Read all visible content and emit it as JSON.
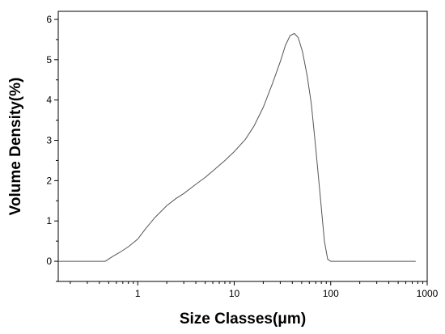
{
  "chart_data": {
    "type": "line",
    "title": "",
    "xlabel": "Size Classes(μm)",
    "ylabel": "Volume Density(%)",
    "x_scale": "log",
    "xlim": [
      0.15,
      1000
    ],
    "ylim": [
      -0.5,
      6.2
    ],
    "x_ticks": [
      {
        "value": 1,
        "label": "1"
      },
      {
        "value": 10,
        "label": "10"
      },
      {
        "value": 100,
        "label": "100"
      },
      {
        "value": 1000,
        "label": "1000"
      }
    ],
    "y_ticks": [
      {
        "value": 0,
        "label": "0"
      },
      {
        "value": 1,
        "label": "1"
      },
      {
        "value": 2,
        "label": "2"
      },
      {
        "value": 3,
        "label": "3"
      },
      {
        "value": 4,
        "label": "4"
      },
      {
        "value": 5,
        "label": "5"
      },
      {
        "value": 6,
        "label": "6"
      }
    ],
    "grid": false,
    "series": [
      {
        "color": "#555555",
        "x": [
          0.15,
          0.46,
          0.55,
          0.65,
          0.8,
          1.0,
          1.2,
          1.5,
          2.0,
          2.5,
          3.0,
          4.0,
          5.0,
          6.0,
          8.0,
          10,
          13,
          16,
          20,
          25,
          30,
          34,
          38,
          42,
          46,
          51,
          57,
          63,
          70,
          78,
          86,
          93,
          100,
          200,
          400,
          760
        ],
        "y": [
          0,
          0,
          0.12,
          0.22,
          0.36,
          0.55,
          0.8,
          1.08,
          1.38,
          1.56,
          1.68,
          1.91,
          2.08,
          2.24,
          2.5,
          2.72,
          3.02,
          3.35,
          3.82,
          4.42,
          4.95,
          5.36,
          5.6,
          5.65,
          5.55,
          5.2,
          4.6,
          3.9,
          2.8,
          1.6,
          0.5,
          0.05,
          0,
          0,
          0,
          0
        ]
      }
    ]
  }
}
